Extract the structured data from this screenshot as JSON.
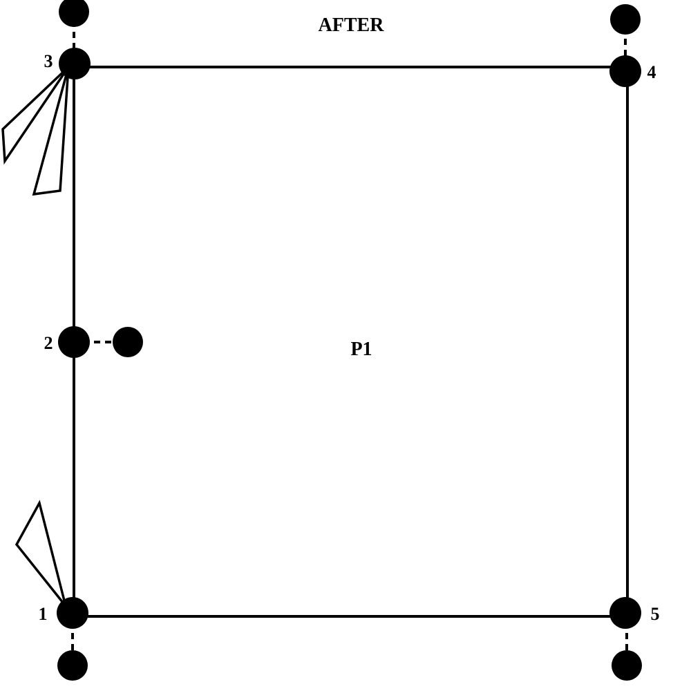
{
  "diagram": {
    "title": "AFTER",
    "polygon_label": "P1",
    "nodes": [
      {
        "id": "1",
        "label": "1"
      },
      {
        "id": "2",
        "label": "2"
      },
      {
        "id": "3",
        "label": "3"
      },
      {
        "id": "4",
        "label": "4"
      },
      {
        "id": "5",
        "label": "5"
      }
    ],
    "colors": {
      "line": "#000000",
      "node": "#000000",
      "background": "#ffffff"
    }
  }
}
